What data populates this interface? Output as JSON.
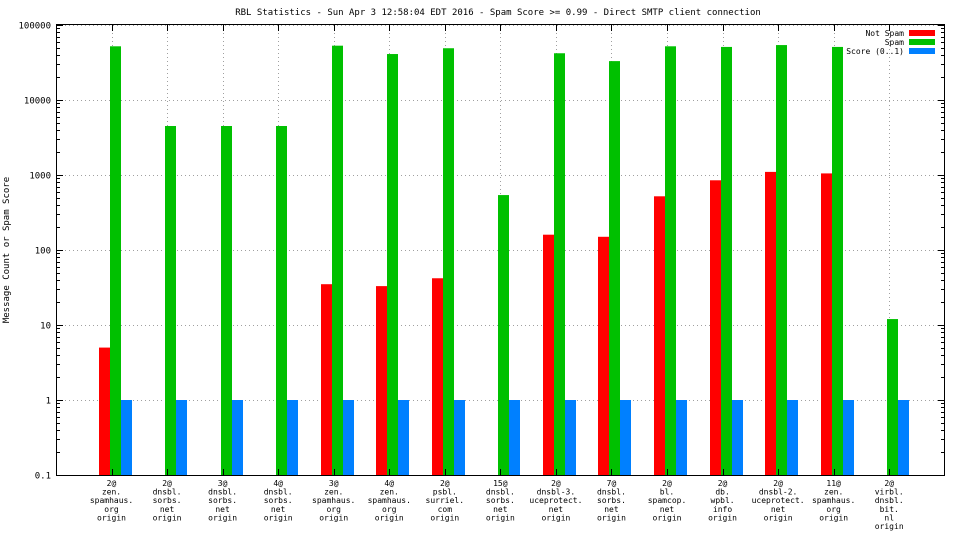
{
  "chart_data": {
    "type": "bar",
    "title": "RBL Statistics - Sun Apr  3 12:58:04 EDT 2016 - Spam Score >= 0.99 - Direct SMTP client connection",
    "ylabel": "Message Count or Spam Score",
    "xlabel": "",
    "yscale": "log",
    "ylim": [
      0.1,
      100000
    ],
    "y_ticks": [
      "0.1",
      "1",
      "10",
      "100",
      "1000",
      "10000",
      "100000"
    ],
    "grid": true,
    "legend_position": "top-right",
    "categories": [
      [
        "2@",
        "zen.",
        "spamhaus.",
        "org",
        "origin"
      ],
      [
        "2@",
        "dnsbl.",
        "sorbs.",
        "net",
        "origin"
      ],
      [
        "3@",
        "dnsbl.",
        "sorbs.",
        "net",
        "origin"
      ],
      [
        "4@",
        "dnsbl.",
        "sorbs.",
        "net",
        "origin"
      ],
      [
        "3@",
        "zen.",
        "spamhaus.",
        "org",
        "origin"
      ],
      [
        "4@",
        "zen.",
        "spamhaus.",
        "org",
        "origin"
      ],
      [
        "2@",
        "psbl.",
        "surriel.",
        "com",
        "origin"
      ],
      [
        "15@",
        "dnsbl.",
        "sorbs.",
        "net",
        "origin"
      ],
      [
        "2@",
        "dnsbl-3.",
        "uceprotect.",
        "net",
        "origin"
      ],
      [
        "7@",
        "dnsbl.",
        "sorbs.",
        "net",
        "origin"
      ],
      [
        "2@",
        "bl.",
        "spamcop.",
        "net",
        "origin"
      ],
      [
        "2@",
        "db.",
        "wpbl.",
        "info",
        "origin"
      ],
      [
        "2@",
        "dnsbl-2.",
        "uceprotect.",
        "net",
        "origin"
      ],
      [
        "11@",
        "zen.",
        "spamhaus.",
        "org",
        "origin"
      ],
      [
        "2@",
        "virbl.",
        "dnsbl.",
        "bit.",
        "nl",
        "origin"
      ]
    ],
    "series": [
      {
        "name": "Not Spam",
        "color": "#ff0000",
        "values": [
          5,
          null,
          null,
          null,
          35,
          33,
          42,
          null,
          160,
          150,
          520,
          850,
          1100,
          1050,
          null
        ]
      },
      {
        "name": "Spam",
        "color": "#00c000",
        "values": [
          52000,
          4500,
          4500,
          4500,
          53000,
          41000,
          49000,
          540,
          42000,
          33000,
          52000,
          51000,
          54000,
          51000,
          12
        ]
      },
      {
        "name": "Score (0..1)",
        "color": "#0080ff",
        "values": [
          1,
          1,
          1,
          1,
          1,
          1,
          1,
          1,
          1,
          1,
          1,
          1,
          1,
          1,
          1
        ]
      }
    ]
  }
}
